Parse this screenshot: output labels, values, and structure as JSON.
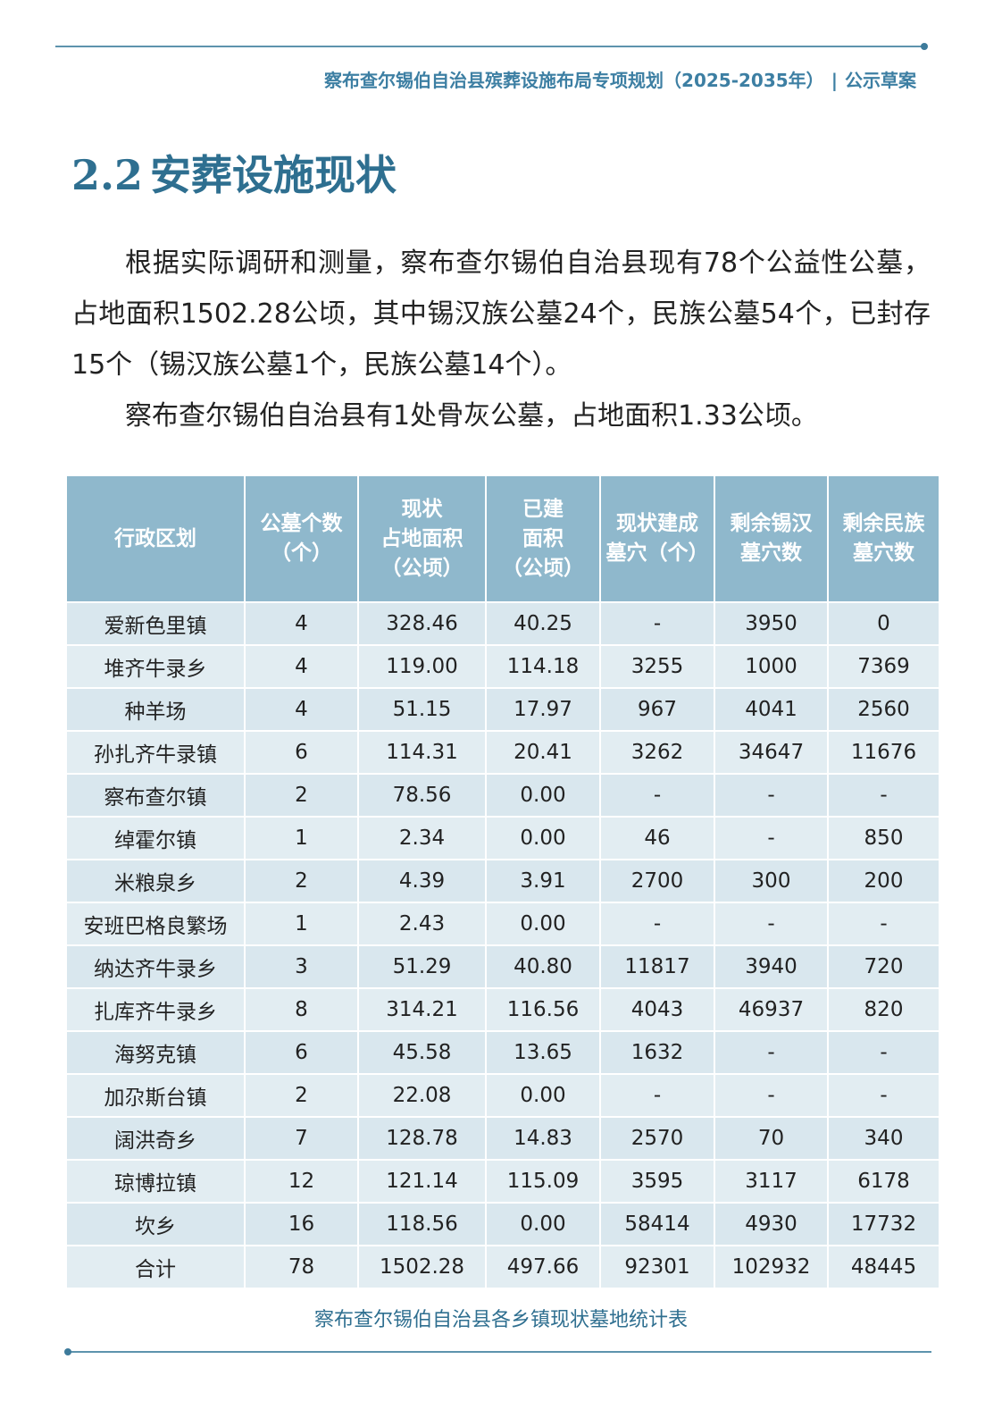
{
  "header": {
    "title": "察布查尔锡伯自治县殡葬设施布局专项规划（2025-2035年）",
    "tag": "公示草案"
  },
  "section": {
    "number": "2.2",
    "title": "安葬设施现状"
  },
  "paragraphs": [
    "根据实际调研和测量，察布查尔锡伯自治县现有78个公益性公墓，占地面积1502.28公顷，其中锡汉族公墓24个，民族公墓54个，已封存15个（锡汉族公墓1个，民族公墓14个）。",
    "察布查尔锡伯自治县有1处骨灰公墓，占地面积1.33公顷。"
  ],
  "table": {
    "header": [
      [
        "行政区划"
      ],
      [
        "公墓个数",
        "（个）"
      ],
      [
        "现状",
        "占地面积",
        "（公顷）"
      ],
      [
        "已建",
        "面积",
        "（公顷）"
      ],
      [
        "现状建成",
        "墓穴（个）"
      ],
      [
        "剩余锡汉",
        "墓穴数"
      ],
      [
        "剩余民族",
        "墓穴数"
      ]
    ],
    "rows": [
      [
        "爱新色里镇",
        "4",
        "328.46",
        "40.25",
        "-",
        "3950",
        "0"
      ],
      [
        "堆齐牛录乡",
        "4",
        "119.00",
        "114.18",
        "3255",
        "1000",
        "7369"
      ],
      [
        "种羊场",
        "4",
        "51.15",
        "17.97",
        "967",
        "4041",
        "2560"
      ],
      [
        "孙扎齐牛录镇",
        "6",
        "114.31",
        "20.41",
        "3262",
        "34647",
        "11676"
      ],
      [
        "察布查尔镇",
        "2",
        "78.56",
        "0.00",
        "-",
        "-",
        "-"
      ],
      [
        "绰霍尔镇",
        "1",
        "2.34",
        "0.00",
        "46",
        "-",
        "850"
      ],
      [
        "米粮泉乡",
        "2",
        "4.39",
        "3.91",
        "2700",
        "300",
        "200"
      ],
      [
        "安班巴格良繁场",
        "1",
        "2.43",
        "0.00",
        "-",
        "-",
        "-"
      ],
      [
        "纳达齐牛录乡",
        "3",
        "51.29",
        "40.80",
        "11817",
        "3940",
        "720"
      ],
      [
        "扎库齐牛录乡",
        "8",
        "314.21",
        "116.56",
        "4043",
        "46937",
        "820"
      ],
      [
        "海努克镇",
        "6",
        "45.58",
        "13.65",
        "1632",
        "-",
        "-"
      ],
      [
        "加尕斯台镇",
        "2",
        "22.08",
        "0.00",
        "-",
        "-",
        "-"
      ],
      [
        "阔洪奇乡",
        "7",
        "128.78",
        "14.83",
        "2570",
        "70",
        "340"
      ],
      [
        "琼博拉镇",
        "12",
        "121.14",
        "115.09",
        "3595",
        "3117",
        "6178"
      ],
      [
        "坎乡",
        "16",
        "118.56",
        "0.00",
        "58414",
        "4930",
        "17732"
      ],
      [
        "合计",
        "78",
        "1502.28",
        "497.66",
        "92301",
        "102932",
        "48445"
      ]
    ],
    "caption": "察布查尔锡伯自治县各乡镇现状墓地统计表"
  }
}
